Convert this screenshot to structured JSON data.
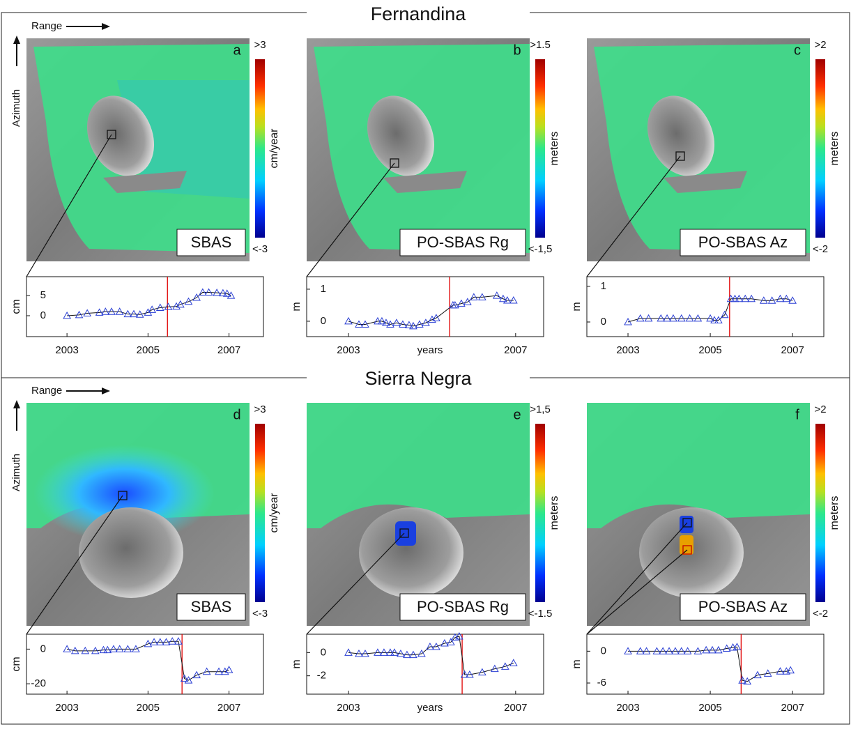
{
  "sections": [
    {
      "title": "Fernandina",
      "range_label": "Range",
      "azimuth_label": "Azimuth",
      "panels": [
        {
          "letter": "a",
          "method": "SBAS",
          "colorbar_max": ">3",
          "colorbar_min": "<-3",
          "colorbar_unit": "cm/year"
        },
        {
          "letter": "b",
          "method": "PO-SBAS Rg",
          "colorbar_max": ">1.5",
          "colorbar_min": "<-1,5",
          "colorbar_unit": "meters"
        },
        {
          "letter": "c",
          "method": "PO-SBAS Az",
          "colorbar_max": ">2",
          "colorbar_min": "<-2",
          "colorbar_unit": "meters"
        }
      ]
    },
    {
      "title": "Sierra Negra",
      "range_label": "Range",
      "azimuth_label": "Azimuth",
      "panels": [
        {
          "letter": "d",
          "method": "SBAS",
          "colorbar_max": ">3",
          "colorbar_min": "<-3",
          "colorbar_unit": "cm/year"
        },
        {
          "letter": "e",
          "method": "PO-SBAS Rg",
          "colorbar_max": ">1,5",
          "colorbar_min": "<-1.5",
          "colorbar_unit": "meters"
        },
        {
          "letter": "f",
          "method": "PO-SBAS Az",
          "colorbar_max": ">2",
          "colorbar_min": "<-2",
          "colorbar_unit": "meters"
        }
      ]
    }
  ],
  "chart_data": [
    {
      "type": "line",
      "ylabel": "cm",
      "color": "#2a3fd4",
      "event_x": 2005.48,
      "event_color": "#e00000",
      "x": [
        2003.0,
        2003.3,
        2003.5,
        2003.8,
        2003.95,
        2004.1,
        2004.3,
        2004.5,
        2004.65,
        2004.8,
        2005.0,
        2005.1,
        2005.3,
        2005.5,
        2005.7,
        2005.8,
        2006.0,
        2006.2,
        2006.35,
        2006.5,
        2006.7,
        2006.85,
        2006.95,
        2007.05
      ],
      "values": [
        0,
        0.2,
        0.6,
        0.8,
        1.0,
        1.0,
        1.0,
        0.4,
        0.4,
        0.3,
        0.8,
        1.5,
        2.0,
        2.2,
        2.3,
        2.8,
        3.5,
        4.5,
        5.8,
        5.8,
        5.7,
        5.6,
        5.5,
        5.0
      ],
      "xlim": [
        2002,
        2007.85
      ],
      "ylim": [
        -5.2,
        9.7
      ],
      "xticks": [
        2003,
        2005,
        2007
      ],
      "yticks": [
        0,
        5
      ]
    },
    {
      "type": "line",
      "ylabel": "m",
      "xlabel": "years",
      "color": "#2a3fd4",
      "event_x": 2005.42,
      "event_color": "#e00000",
      "x": [
        2003.0,
        2003.25,
        2003.4,
        2003.7,
        2003.8,
        2003.9,
        2004.0,
        2004.15,
        2004.3,
        2004.45,
        2004.55,
        2004.7,
        2004.85,
        2005.0,
        2005.1,
        2005.5,
        2005.55,
        2005.7,
        2005.85,
        2006.0,
        2006.2,
        2006.55,
        2006.7,
        2006.8,
        2006.95
      ],
      "values": [
        0,
        -0.1,
        -0.1,
        0,
        0,
        -0.05,
        -0.1,
        -0.05,
        -0.1,
        -0.12,
        -0.15,
        -0.1,
        -0.05,
        0.05,
        0.1,
        0.5,
        0.5,
        0.55,
        0.6,
        0.75,
        0.75,
        0.8,
        0.7,
        0.65,
        0.65
      ],
      "xlim": [
        2002,
        2007.67
      ],
      "ylim": [
        -0.48,
        1.39
      ],
      "xticks": [
        2003,
        2007
      ],
      "yticks": [
        0,
        1
      ]
    },
    {
      "type": "line",
      "ylabel": "m",
      "color": "#2a3fd4",
      "event_x": 2005.47,
      "event_color": "#e00000",
      "x": [
        2003.0,
        2003.3,
        2003.5,
        2003.8,
        2003.95,
        2004.1,
        2004.3,
        2004.5,
        2004.7,
        2005.0,
        2005.1,
        2005.2,
        2005.35,
        2005.5,
        2005.6,
        2005.7,
        2005.85,
        2006.0,
        2006.3,
        2006.5,
        2006.7,
        2006.85,
        2007.0
      ],
      "values": [
        0,
        0.1,
        0.1,
        0.1,
        0.1,
        0.1,
        0.1,
        0.1,
        0.1,
        0.1,
        0.05,
        0.05,
        0.2,
        0.65,
        0.65,
        0.65,
        0.65,
        0.65,
        0.6,
        0.6,
        0.65,
        0.65,
        0.6
      ],
      "xlim": [
        2002,
        2007.76
      ],
      "ylim": [
        -0.41,
        1.27
      ],
      "xticks": [
        2003,
        2005,
        2007
      ],
      "yticks": [
        0,
        1
      ]
    },
    {
      "type": "line",
      "ylabel": "cm",
      "color": "#2a3fd4",
      "event_x": 2005.84,
      "event_color": "#e00000",
      "x": [
        2003.0,
        2003.2,
        2003.45,
        2003.7,
        2003.9,
        2004.0,
        2004.15,
        2004.3,
        2004.5,
        2004.7,
        2005.0,
        2005.15,
        2005.3,
        2005.45,
        2005.6,
        2005.75,
        2005.9,
        2006.0,
        2006.2,
        2006.45,
        2006.75,
        2006.9,
        2007.0
      ],
      "values": [
        0,
        -1,
        -1,
        -1,
        -0.5,
        -0.5,
        0,
        0,
        0,
        0,
        3,
        4,
        4,
        4,
        4.5,
        4.5,
        -17,
        -18,
        -15,
        -13,
        -13,
        -13,
        -12
      ],
      "xlim": [
        2002,
        2007.85
      ],
      "ylim": [
        -26,
        8.6
      ],
      "xticks": [
        2003,
        2005,
        2007
      ],
      "yticks": [
        0,
        -20
      ]
    },
    {
      "type": "line",
      "ylabel": "m",
      "xlabel": "years",
      "color": "#2a3fd4",
      "event_x": 2005.72,
      "event_color": "#e00000",
      "x": [
        2003.0,
        2003.25,
        2003.4,
        2003.7,
        2003.85,
        2004.0,
        2004.1,
        2004.25,
        2004.4,
        2004.55,
        2004.75,
        2004.95,
        2005.1,
        2005.3,
        2005.45,
        2005.55,
        2005.65,
        2005.78,
        2005.9,
        2006.2,
        2006.5,
        2006.75,
        2006.95
      ],
      "values": [
        0,
        -0.1,
        -0.1,
        0,
        0,
        0,
        0,
        -0.1,
        -0.2,
        -0.2,
        -0.1,
        0.5,
        0.5,
        0.8,
        0.9,
        1.3,
        1.4,
        -1.9,
        -1.9,
        -1.7,
        -1.4,
        -1.2,
        -0.9
      ],
      "xlim": [
        2002,
        2007.67
      ],
      "ylim": [
        -3.58,
        1.58
      ],
      "xticks": [
        2003,
        2007
      ],
      "yticks": [
        0,
        -2
      ]
    },
    {
      "type": "line",
      "ylabel": "m",
      "color": "#2a3fd4",
      "event_x": 2005.75,
      "event_color": "#e00000",
      "x": [
        2003.0,
        2003.3,
        2003.45,
        2003.7,
        2003.85,
        2004.0,
        2004.15,
        2004.3,
        2004.45,
        2004.7,
        2004.9,
        2005.05,
        2005.2,
        2005.4,
        2005.55,
        2005.65,
        2005.78,
        2005.9,
        2006.15,
        2006.4,
        2006.7,
        2006.85,
        2006.95
      ],
      "values": [
        0,
        0,
        0,
        0,
        0,
        0,
        0,
        0,
        0,
        0,
        0.2,
        0.2,
        0.2,
        0.5,
        0.7,
        0.8,
        -5.5,
        -5.7,
        -4.5,
        -4.2,
        -3.8,
        -3.8,
        -3.6
      ],
      "xlim": [
        2002,
        2007.76
      ],
      "ylim": [
        -8.1,
        3.2
      ],
      "xticks": [
        2003,
        2005,
        2007
      ],
      "yticks": [
        0,
        -6
      ]
    }
  ]
}
